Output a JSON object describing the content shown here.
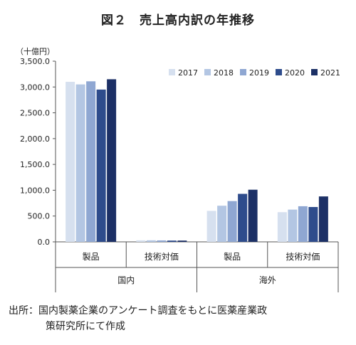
{
  "title": "図２　売上高内訳の年推移",
  "unit": "（十億円）",
  "source": {
    "label": "出所：",
    "line1": "国内製薬企業のアンケート調査をもとに医薬産業政",
    "line2": "策研究所にて作成"
  },
  "chart_data": {
    "type": "bar",
    "categories": [
      "製品",
      "技術対価",
      "製品",
      "技術対価"
    ],
    "groups": [
      {
        "label": "国内",
        "categories": [
          "製品",
          "技術対価"
        ]
      },
      {
        "label": "海外",
        "categories": [
          "製品",
          "技術対価"
        ]
      }
    ],
    "series": [
      {
        "name": "2017",
        "color": "#d6e0ef",
        "values": [
          3100,
          30,
          600,
          575
        ]
      },
      {
        "name": "2018",
        "color": "#b3c6e3",
        "values": [
          3050,
          30,
          700,
          625
        ]
      },
      {
        "name": "2019",
        "color": "#8fa7d2",
        "values": [
          3110,
          28,
          790,
          690
        ]
      },
      {
        "name": "2020",
        "color": "#2e4c8c",
        "values": [
          2950,
          25,
          930,
          675
        ]
      },
      {
        "name": "2021",
        "color": "#1c3066",
        "values": [
          3150,
          25,
          1010,
          880
        ]
      }
    ],
    "ylim": [
      0,
      3500
    ],
    "yticks": [
      "0.0",
      "500.0",
      "1,000.0",
      "1,500.0",
      "2,000.0",
      "2,500.0",
      "3,000.0",
      "3,500.0"
    ],
    "grid": false,
    "legend": "top-right"
  }
}
